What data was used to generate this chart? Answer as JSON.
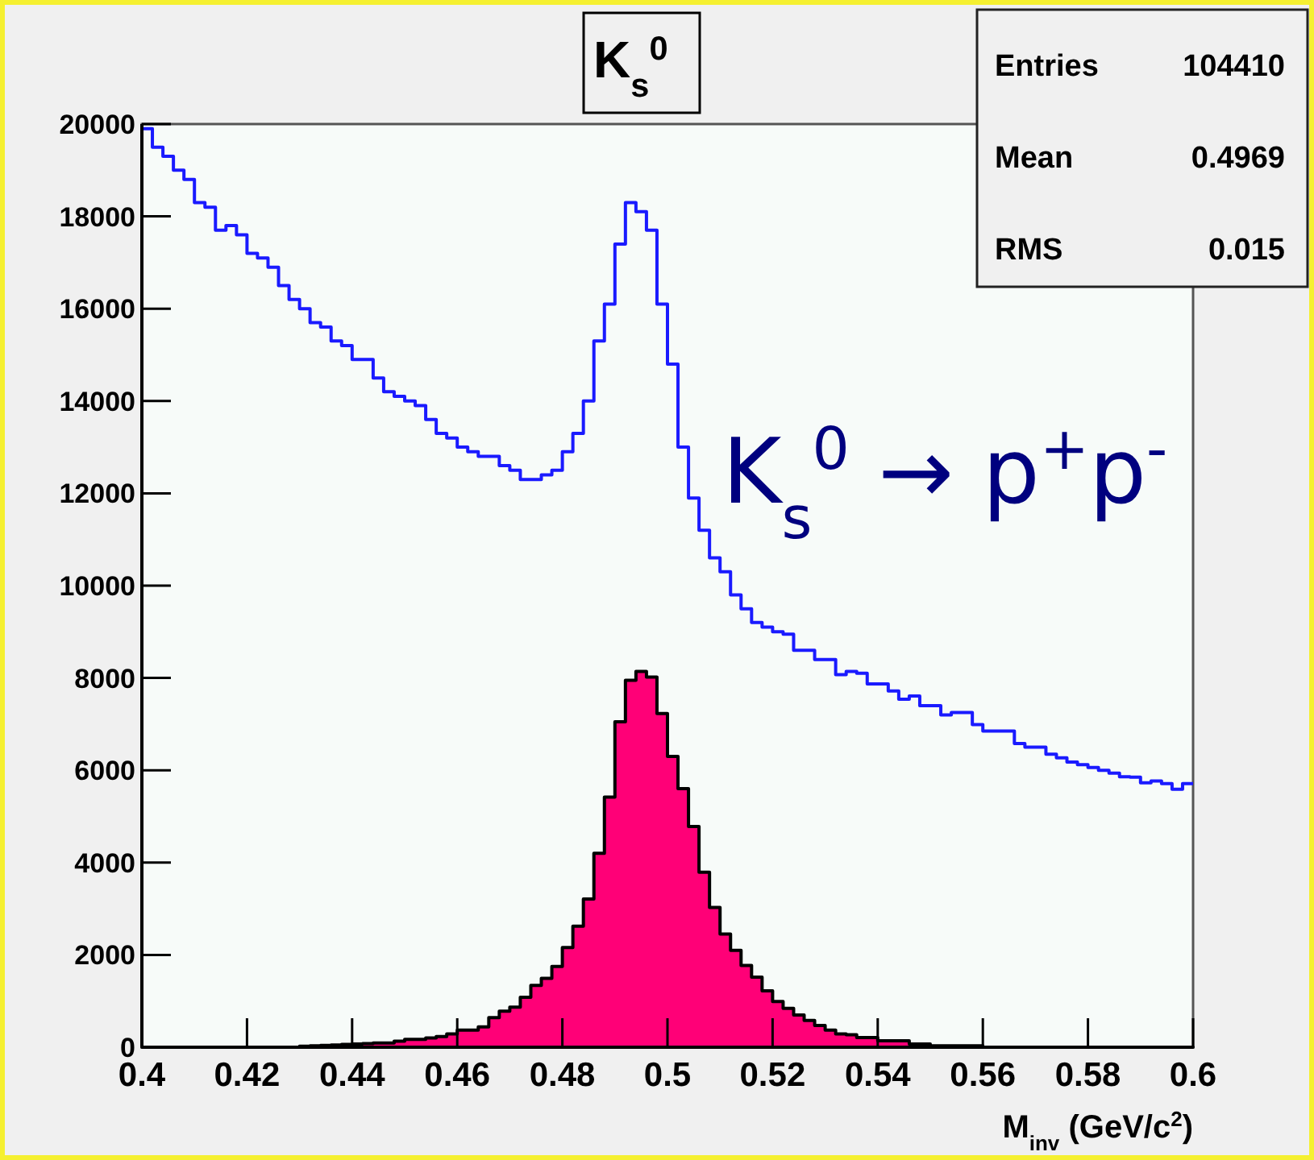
{
  "chart_data": {
    "type": "histogram",
    "title": "K$_{s}$$^{0}$",
    "xlabel": "M$_{inv}$ (GeV/c$^{2}$)",
    "annotations": [
      "Entries 104410",
      "Mean 0.4969",
      "RMS 0.015",
      "K$_{s}$$^{0}$ → p$^{+}$p$^{-}$"
    ],
    "bins": [
      0.4,
      0.402,
      0.404,
      0.406,
      0.408,
      0.41,
      0.412,
      0.414,
      0.416,
      0.418,
      0.42,
      0.422,
      0.424,
      0.426,
      0.428,
      0.43,
      0.432,
      0.434,
      0.436,
      0.438,
      0.44,
      0.442,
      0.444,
      0.446,
      0.448,
      0.45,
      0.452,
      0.454,
      0.456,
      0.458,
      0.46,
      0.462,
      0.464,
      0.466,
      0.468,
      0.47,
      0.472,
      0.474,
      0.476,
      0.478,
      0.48,
      0.482,
      0.484,
      0.486,
      0.488,
      0.49,
      0.492,
      0.494,
      0.496,
      0.498,
      0.5,
      0.502,
      0.504,
      0.506,
      0.508,
      0.51,
      0.512,
      0.514,
      0.516,
      0.518,
      0.52,
      0.522,
      0.524,
      0.526,
      0.528,
      0.53,
      0.532,
      0.534,
      0.536,
      0.538,
      0.54,
      0.542,
      0.544,
      0.546,
      0.548,
      0.55,
      0.552,
      0.554,
      0.556,
      0.558,
      0.56,
      0.562,
      0.564,
      0.566,
      0.568,
      0.57,
      0.572,
      0.574,
      0.576,
      0.578,
      0.58,
      0.582,
      0.584,
      0.586,
      0.588,
      0.59,
      0.592,
      0.594,
      0.596,
      0.598,
      0.6
    ],
    "series": [
      {
        "type": "step",
        "color": "#1a1aff",
        "x": [
          0.4,
          0.402,
          0.404,
          0.406,
          0.408,
          0.41,
          0.412,
          0.414,
          0.416,
          0.418,
          0.42,
          0.422,
          0.424,
          0.426,
          0.428,
          0.43,
          0.432,
          0.434,
          0.436,
          0.438,
          0.44,
          0.442,
          0.444,
          0.446,
          0.448,
          0.45,
          0.452,
          0.454,
          0.456,
          0.458,
          0.46,
          0.462,
          0.464,
          0.466,
          0.468,
          0.47,
          0.472,
          0.474,
          0.476,
          0.478,
          0.48,
          0.482,
          0.484,
          0.486,
          0.488,
          0.49,
          0.492,
          0.494,
          0.496,
          0.498,
          0.5,
          0.502,
          0.504,
          0.506,
          0.508,
          0.51,
          0.512,
          0.514,
          0.516,
          0.518,
          0.52,
          0.522,
          0.524,
          0.526,
          0.528,
          0.53,
          0.532,
          0.534,
          0.536,
          0.538,
          0.54,
          0.542,
          0.544,
          0.546,
          0.548,
          0.55,
          0.552,
          0.554,
          0.556,
          0.558,
          0.56,
          0.562,
          0.564,
          0.566,
          0.568,
          0.57,
          0.572,
          0.574,
          0.576,
          0.578,
          0.58,
          0.582,
          0.584,
          0.586,
          0.588,
          0.59,
          0.592,
          0.594,
          0.596,
          0.598,
          0.6
        ],
        "values": [
          19900,
          19500,
          19300,
          19000,
          18800,
          18300,
          18200,
          17700,
          17800,
          17600,
          17200,
          17100,
          16900,
          16500,
          16200,
          16000,
          15700,
          15600,
          15300,
          15200,
          14900,
          14900,
          14500,
          14200,
          14100,
          14000,
          13900,
          13600,
          13300,
          13200,
          13000,
          12900,
          12800,
          12800,
          12600,
          12500,
          12300,
          12300,
          12400,
          12500,
          12900,
          13300,
          14000,
          15300,
          16100,
          17400,
          18300,
          18100,
          17700,
          16100,
          14800,
          13000,
          11900,
          11200,
          10600,
          10300,
          9800,
          9500,
          9200,
          9100,
          9000,
          8950,
          8600,
          8600,
          8400,
          8400,
          8070,
          8140,
          8100,
          7870,
          7870,
          7720,
          7540,
          7610,
          7400,
          7400,
          7200,
          7250,
          7250,
          6990,
          6850,
          6850,
          6850,
          6580,
          6500,
          6500,
          6350,
          6270,
          6180,
          6120,
          6060,
          6000,
          5940,
          5860,
          5850,
          5730,
          5770,
          5710,
          5590,
          5710,
          5710
        ]
      },
      {
        "color": "#ff0077",
        "values": [
          0,
          0,
          0,
          0,
          0,
          0,
          0,
          0,
          0,
          0,
          0,
          0,
          0,
          0,
          0,
          20,
          30,
          40,
          50,
          60,
          70,
          80,
          90,
          90,
          130,
          170,
          170,
          200,
          230,
          290,
          370,
          370,
          440,
          640,
          780,
          870,
          1080,
          1340,
          1490,
          1750,
          2160,
          2620,
          3210,
          4200,
          5420,
          7050,
          7950,
          8140,
          8020,
          7230,
          6300,
          5600,
          4780,
          3790,
          3030,
          2450,
          2100,
          1770,
          1520,
          1220,
          990,
          840,
          700,
          580,
          470,
          370,
          290,
          270,
          210,
          210,
          140,
          140,
          140,
          70,
          70,
          30,
          30,
          30,
          30,
          30,
          0,
          0,
          0,
          0,
          0,
          0,
          0,
          0,
          0,
          0,
          0,
          0,
          0,
          0,
          0,
          0,
          0,
          0,
          0,
          0
        ]
      }
    ],
    "xlim": [
      0.4,
      0.6
    ],
    "ylim": [
      0,
      20000
    ],
    "xticks": [
      0.4,
      0.42,
      0.44,
      0.46,
      0.48,
      0.5,
      0.52,
      0.54,
      0.56,
      0.58,
      0.6
    ],
    "yticks": [
      0,
      2000,
      4000,
      6000,
      8000,
      10000,
      12000,
      14000,
      16000,
      18000,
      20000
    ],
    "grid": false
  }
}
